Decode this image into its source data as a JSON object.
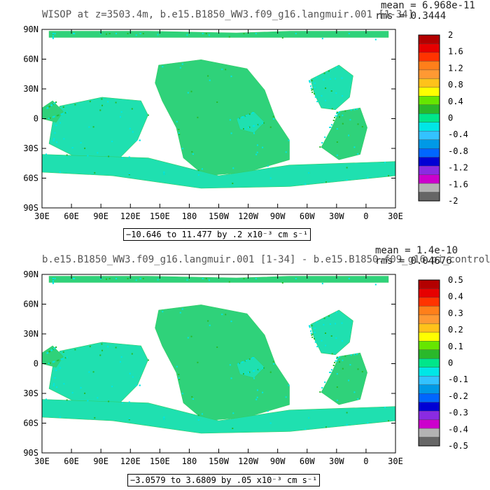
{
  "chart_data": [
    {
      "type": "heatmap",
      "title": "WISOP at z=3503.4m, b.e15.B1850_WW3.f09_g16.langmuir.001 [1-34]",
      "stats": {
        "mean": "mean = 6.968e-11",
        "rms": "rms = 0.3444"
      },
      "xticks": [
        "30E",
        "60E",
        "90E",
        "120E",
        "150E",
        "180",
        "150W",
        "120W",
        "90W",
        "60W",
        "30W",
        "0",
        "30E"
      ],
      "yticks": [
        "90N",
        "60N",
        "30N",
        "0",
        "30S",
        "60S",
        "90S"
      ],
      "colorbar_labels": [
        "2",
        "1.6",
        "1.2",
        "0.8",
        "0.4",
        "0",
        "-0.4",
        "-0.8",
        "-1.2",
        "-1.6",
        "-2"
      ],
      "colorbar_colors": [
        "#b30000",
        "#e60000",
        "#ff3300",
        "#ff7f1a",
        "#ff9933",
        "#ffc21a",
        "#ffff00",
        "#66e600",
        "#2ab82a",
        "#00e68a",
        "#00e6e6",
        "#33c2ff",
        "#0099e6",
        "#0066ff",
        "#0000d4",
        "#8a2be2",
        "#cc00cc",
        "#b3b3b3",
        "#666666"
      ],
      "range_note": "−10.646 to 11.477 by .2 x10⁻³ cm s⁻¹"
    },
    {
      "type": "heatmap",
      "title": "b.e15.B1850_WW3.f09_g16.langmuir.001 [1-34] - b.e15.B1850.f09_g16.pi_control",
      "stats": {
        "mean": "mean = 1.4e-10",
        "rms": "rms = 0.04676"
      },
      "xticks": [
        "30E",
        "60E",
        "90E",
        "120E",
        "150E",
        "180",
        "150W",
        "120W",
        "90W",
        "60W",
        "30W",
        "0",
        "30E"
      ],
      "yticks": [
        "90N",
        "60N",
        "30N",
        "0",
        "30S",
        "60S",
        "90S"
      ],
      "colorbar_labels": [
        "0.5",
        "0.4",
        "0.3",
        "0.2",
        "0.1",
        "0",
        "-0.1",
        "-0.2",
        "-0.3",
        "-0.4",
        "-0.5"
      ],
      "colorbar_colors": [
        "#b30000",
        "#e60000",
        "#ff3300",
        "#ff7f1a",
        "#ff9933",
        "#ffc21a",
        "#ffff00",
        "#66e600",
        "#2ab82a",
        "#00e68a",
        "#00e6e6",
        "#33c2ff",
        "#0099e6",
        "#0066ff",
        "#0000d4",
        "#8a2be2",
        "#cc00cc",
        "#b3b3b3",
        "#666666"
      ],
      "range_note": "−3.0579 to 3.6809 by .05 x10⁻³ cm s⁻¹"
    }
  ]
}
